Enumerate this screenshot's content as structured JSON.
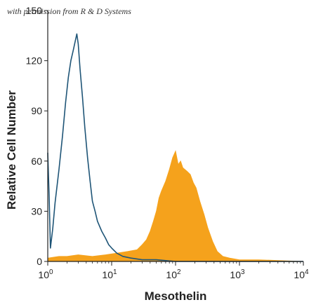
{
  "credit": "with permission from R & D Systems",
  "colors": {
    "filled": "#F5A21C",
    "outline": "#1F5577",
    "axis": "#222222"
  },
  "chart_data": {
    "type": "area",
    "xlabel": "Mesothelin",
    "ylabel": "Relative Cell Number",
    "x_scale": "log",
    "xlim": [
      1,
      10000
    ],
    "ylim": [
      0,
      150
    ],
    "x_ticks": [
      {
        "value": 1,
        "base": "10",
        "exp": "0"
      },
      {
        "value": 10,
        "base": "10",
        "exp": "1"
      },
      {
        "value": 100,
        "base": "10",
        "exp": "2"
      },
      {
        "value": 1000,
        "base": "10",
        "exp": "3"
      },
      {
        "value": 10000,
        "base": "10",
        "exp": "4"
      }
    ],
    "y_ticks": [
      {
        "value": 0,
        "label": "0"
      },
      {
        "value": 30,
        "label": "30"
      },
      {
        "value": 60,
        "label": "60"
      },
      {
        "value": 90,
        "label": "90"
      },
      {
        "value": 120,
        "label": "120"
      },
      {
        "value": 150,
        "label": "150"
      }
    ],
    "grid": false,
    "series": [
      {
        "style": "filled",
        "color": "#F5A21C",
        "x": [
          1,
          1.5,
          2,
          3,
          5,
          8,
          12,
          18,
          25,
          30,
          35,
          40,
          45,
          50,
          55,
          60,
          70,
          80,
          90,
          100,
          110,
          120,
          130,
          150,
          170,
          190,
          210,
          240,
          280,
          320,
          380,
          450,
          550,
          700,
          1000,
          2000,
          10000
        ],
        "y": [
          2,
          3,
          3,
          4,
          3,
          4,
          5,
          6,
          7,
          10,
          13,
          18,
          24,
          30,
          38,
          42,
          48,
          55,
          62,
          66,
          58,
          60,
          56,
          54,
          52,
          47,
          44,
          36,
          28,
          20,
          12,
          6,
          3,
          2,
          1,
          1,
          0
        ]
      },
      {
        "style": "outline",
        "color": "#1F5577",
        "x": [
          1,
          1.05,
          1.1,
          1.2,
          1.3,
          1.5,
          1.7,
          1.9,
          2.1,
          2.3,
          2.5,
          2.7,
          2.85,
          3.0,
          3.2,
          3.5,
          3.8,
          4.2,
          4.6,
          5,
          5.5,
          6,
          7,
          8,
          9,
          10,
          12,
          15,
          20,
          30,
          50,
          100,
          1000,
          10000
        ],
        "y": [
          65,
          40,
          8,
          20,
          35,
          55,
          75,
          95,
          110,
          120,
          126,
          132,
          136,
          130,
          115,
          98,
          80,
          62,
          48,
          36,
          30,
          24,
          18,
          14,
          10,
          8,
          5,
          3,
          2,
          1,
          1,
          0,
          0,
          0
        ]
      }
    ]
  }
}
